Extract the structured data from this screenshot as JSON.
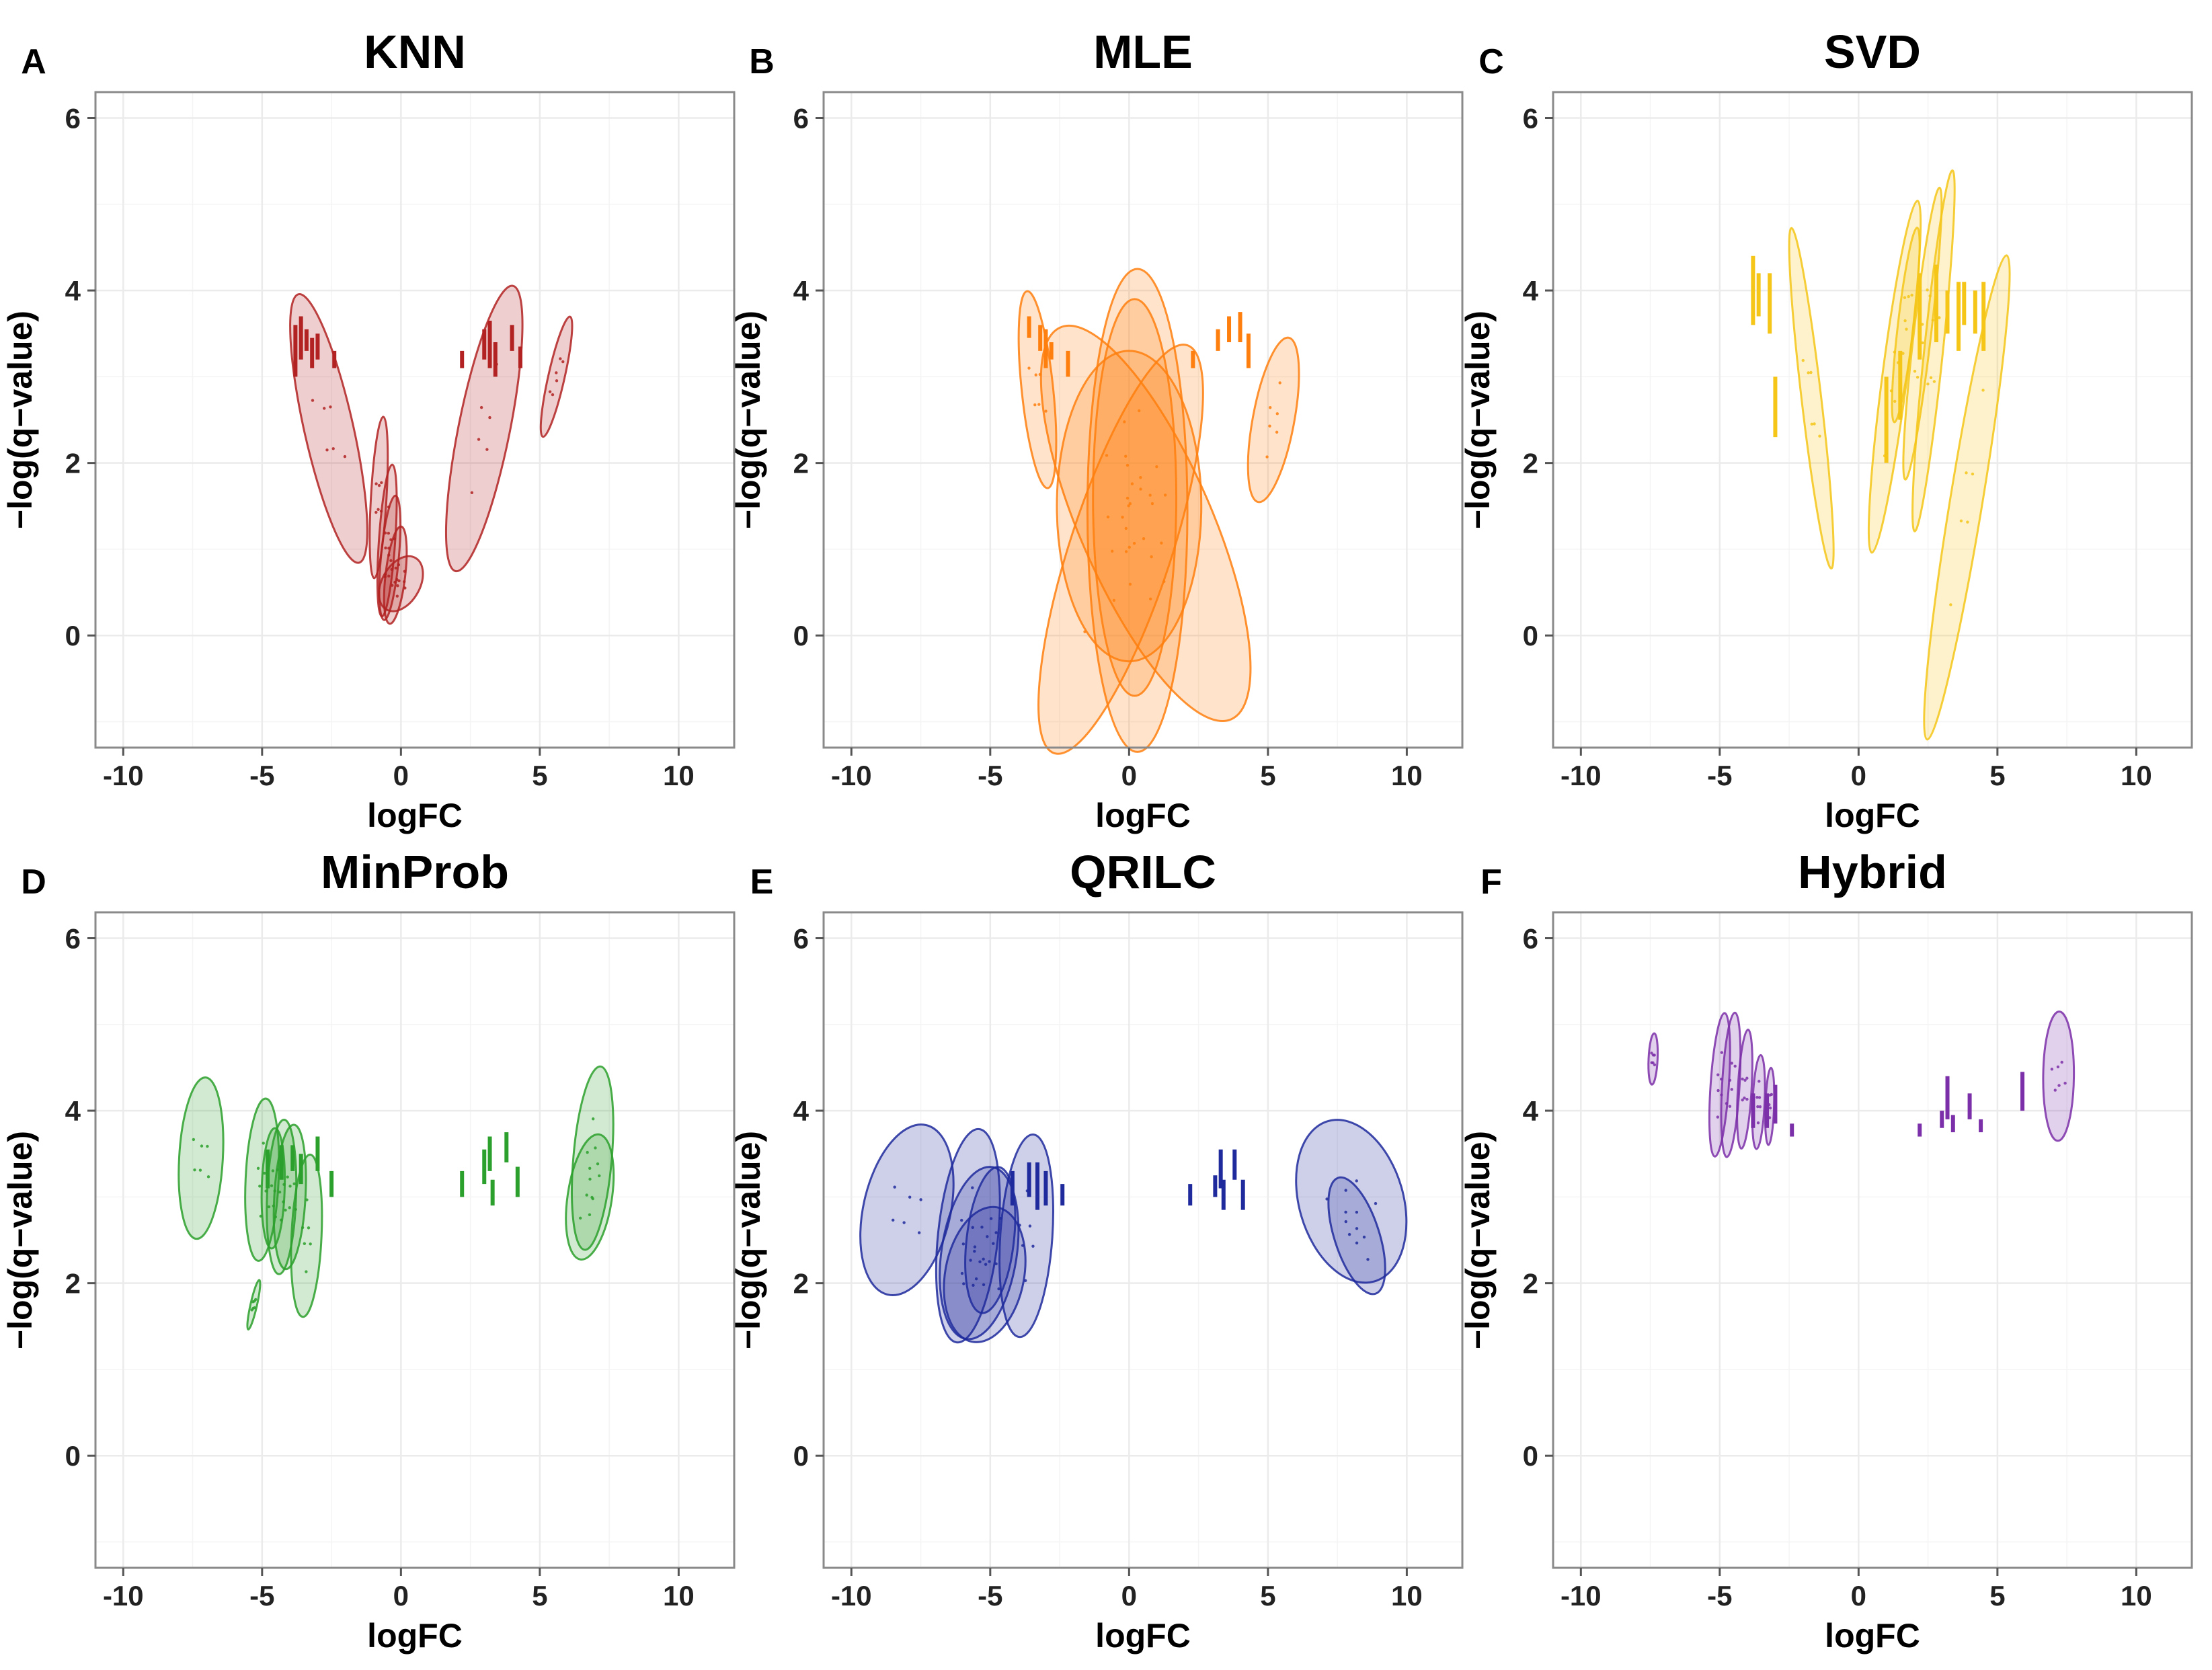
{
  "figure": {
    "x_axis_label": "logFC",
    "y_axis_label": "−log(q−value)"
  },
  "chart_data": [
    {
      "panel": "A",
      "title": "KNN",
      "type": "scatter",
      "color": "#b22222",
      "xlabel": "logFC",
      "ylabel": "−log(q−value)",
      "xlim": [
        -11,
        12
      ],
      "ylim": [
        -1.3,
        6.3
      ],
      "xticks": [
        -10,
        -5,
        0,
        5,
        10
      ],
      "yticks": [
        0,
        2,
        4,
        6
      ],
      "ellipses": [
        {
          "cx": -2.6,
          "cy": 2.4,
          "rx": 1.9,
          "ry": 0.45,
          "angle": -55
        },
        {
          "cx": 3.0,
          "cy": 2.4,
          "rx": 1.95,
          "ry": 0.5,
          "angle": 58
        },
        {
          "cx": 5.6,
          "cy": 3.0,
          "rx": 0.85,
          "ry": 0.15,
          "angle": 55
        },
        {
          "cx": -0.8,
          "cy": 1.6,
          "rx": 0.95,
          "ry": 0.25,
          "angle": 80
        },
        {
          "cx": -0.5,
          "cy": 1.1,
          "rx": 0.9,
          "ry": 0.25,
          "angle": 78
        },
        {
          "cx": -0.4,
          "cy": 0.9,
          "rx": 0.75,
          "ry": 0.25,
          "angle": 74
        },
        {
          "cx": -0.2,
          "cy": 0.7,
          "rx": 0.6,
          "ry": 0.25,
          "angle": 70
        },
        {
          "cx": 0.0,
          "cy": 0.6,
          "rx": 0.6,
          "ry": 0.25,
          "angle": 30
        }
      ],
      "segments": [
        {
          "x": -3.8,
          "y1": 3.0,
          "y2": 3.6
        },
        {
          "x": -3.6,
          "y1": 3.2,
          "y2": 3.7
        },
        {
          "x": -3.4,
          "y1": 3.3,
          "y2": 3.55
        },
        {
          "x": -3.2,
          "y1": 3.1,
          "y2": 3.45
        },
        {
          "x": -3.0,
          "y1": 3.2,
          "y2": 3.5
        },
        {
          "x": -2.4,
          "y1": 3.1,
          "y2": 3.3
        },
        {
          "x": 2.2,
          "y1": 3.1,
          "y2": 3.3
        },
        {
          "x": 3.0,
          "y1": 3.2,
          "y2": 3.55
        },
        {
          "x": 3.2,
          "y1": 3.1,
          "y2": 3.65
        },
        {
          "x": 3.4,
          "y1": 3.0,
          "y2": 3.4
        },
        {
          "x": 4.0,
          "y1": 3.3,
          "y2": 3.6
        },
        {
          "x": 4.3,
          "y1": 3.1,
          "y2": 3.35
        }
      ]
    },
    {
      "panel": "B",
      "title": "MLE",
      "type": "scatter",
      "color": "#ff7f0e",
      "xlabel": "logFC",
      "ylabel": "−log(q−value)",
      "xlim": [
        -11,
        12
      ],
      "ylim": [
        -1.3,
        6.3
      ],
      "xticks": [
        -10,
        -5,
        0,
        5,
        10
      ],
      "yticks": [
        0,
        2,
        4,
        6
      ],
      "ellipses": [
        {
          "cx": -3.3,
          "cy": 2.85,
          "rx": 1.2,
          "ry": 0.42,
          "angle": -72
        },
        {
          "cx": 5.2,
          "cy": 2.5,
          "rx": 1.1,
          "ry": 0.42,
          "angle": 60
        },
        {
          "cx": 0.3,
          "cy": 1.45,
          "rx": 1.8,
          "ry": 2.8,
          "angle": 0
        },
        {
          "cx": -0.3,
          "cy": 1.0,
          "rx": 1.75,
          "ry": 2.5,
          "angle": -6
        },
        {
          "cx": 0.6,
          "cy": 1.3,
          "rx": 2.2,
          "ry": 2.5,
          "angle": 8
        },
        {
          "cx": 0.0,
          "cy": 1.5,
          "rx": 2.6,
          "ry": 1.8,
          "angle": 0
        },
        {
          "cx": 0.2,
          "cy": 1.6,
          "rx": 1.5,
          "ry": 2.3,
          "angle": 0
        }
      ],
      "segments": [
        {
          "x": -3.6,
          "y1": 3.45,
          "y2": 3.7
        },
        {
          "x": -3.2,
          "y1": 3.3,
          "y2": 3.6
        },
        {
          "x": -3.0,
          "y1": 3.1,
          "y2": 3.55
        },
        {
          "x": -2.8,
          "y1": 3.2,
          "y2": 3.4
        },
        {
          "x": -2.2,
          "y1": 3.0,
          "y2": 3.3
        },
        {
          "x": 2.3,
          "y1": 3.1,
          "y2": 3.3
        },
        {
          "x": 3.2,
          "y1": 3.3,
          "y2": 3.55
        },
        {
          "x": 3.6,
          "y1": 3.4,
          "y2": 3.7
        },
        {
          "x": 4.0,
          "y1": 3.4,
          "y2": 3.75
        },
        {
          "x": 4.3,
          "y1": 3.1,
          "y2": 3.5
        }
      ]
    },
    {
      "panel": "C",
      "title": "SVD",
      "type": "scatter",
      "color": "#f5c518",
      "xlabel": "logFC",
      "ylabel": "−log(q−value)",
      "xlim": [
        -11,
        12
      ],
      "ylim": [
        -1.3,
        6.3
      ],
      "xticks": [
        -10,
        -5,
        0,
        5,
        10
      ],
      "yticks": [
        0,
        2,
        4,
        6
      ],
      "ellipses": [
        {
          "cx": -1.7,
          "cy": 2.75,
          "rx": 2.1,
          "ry": 0.25,
          "angle": -70
        },
        {
          "cx": 1.3,
          "cy": 3.0,
          "rx": 2.2,
          "ry": 0.3,
          "angle": 68
        },
        {
          "cx": 2.3,
          "cy": 3.5,
          "rx": 1.8,
          "ry": 0.22,
          "angle": 70
        },
        {
          "cx": 2.7,
          "cy": 3.3,
          "rx": 2.2,
          "ry": 0.25,
          "angle": 72
        },
        {
          "cx": 3.9,
          "cy": 1.6,
          "rx": 3.15,
          "ry": 0.35,
          "angle": 63
        },
        {
          "cx": 1.7,
          "cy": 3.6,
          "rx": 1.2,
          "ry": 0.2,
          "angle": 70
        }
      ],
      "segments": [
        {
          "x": -3.8,
          "y1": 3.6,
          "y2": 4.4
        },
        {
          "x": -3.6,
          "y1": 3.7,
          "y2": 4.2
        },
        {
          "x": -3.2,
          "y1": 3.5,
          "y2": 4.2
        },
        {
          "x": -3.0,
          "y1": 2.3,
          "y2": 3.0
        },
        {
          "x": 1.0,
          "y1": 2.0,
          "y2": 3.0
        },
        {
          "x": 1.5,
          "y1": 2.5,
          "y2": 3.3
        },
        {
          "x": 2.2,
          "y1": 3.2,
          "y2": 4.2
        },
        {
          "x": 2.8,
          "y1": 3.4,
          "y2": 4.3
        },
        {
          "x": 3.2,
          "y1": 3.5,
          "y2": 4.0
        },
        {
          "x": 3.6,
          "y1": 3.3,
          "y2": 4.1
        },
        {
          "x": 3.8,
          "y1": 3.6,
          "y2": 4.1
        },
        {
          "x": 4.2,
          "y1": 3.5,
          "y2": 4.0
        },
        {
          "x": 4.5,
          "y1": 3.3,
          "y2": 4.1
        }
      ]
    },
    {
      "panel": "D",
      "title": "MinProb",
      "type": "scatter",
      "color": "#2ca02c",
      "xlabel": "logFC",
      "ylabel": "−log(q−value)",
      "xlim": [
        -11,
        12
      ],
      "ylim": [
        -1.3,
        6.3
      ],
      "xticks": [
        -10,
        -5,
        0,
        5,
        10
      ],
      "yticks": [
        0,
        2,
        4,
        6
      ],
      "ellipses": [
        {
          "cx": -7.2,
          "cy": 3.45,
          "rx": 0.95,
          "ry": 0.7,
          "angle": 80
        },
        {
          "cx": -5.0,
          "cy": 3.2,
          "rx": 0.95,
          "ry": 0.55,
          "angle": 82
        },
        {
          "cx": -4.3,
          "cy": 3.0,
          "rx": 0.9,
          "ry": 0.5,
          "angle": 84
        },
        {
          "cx": -4.0,
          "cy": 3.0,
          "rx": 0.85,
          "ry": 0.5,
          "angle": 80
        },
        {
          "cx": -3.4,
          "cy": 2.55,
          "rx": 0.95,
          "ry": 0.5,
          "angle": 82
        },
        {
          "cx": -4.6,
          "cy": 3.1,
          "rx": 0.7,
          "ry": 0.4,
          "angle": 85
        },
        {
          "cx": -5.3,
          "cy": 1.75,
          "rx": 0.35,
          "ry": 0.06,
          "angle": 55
        },
        {
          "cx": 6.9,
          "cy": 3.45,
          "rx": 1.1,
          "ry": 0.55,
          "angle": 75
        },
        {
          "cx": 6.8,
          "cy": 3.0,
          "rx": 0.8,
          "ry": 0.5,
          "angle": 65
        }
      ],
      "segments": [
        {
          "x": -4.8,
          "y1": 3.1,
          "y2": 3.55
        },
        {
          "x": -4.3,
          "y1": 3.2,
          "y2": 3.6
        },
        {
          "x": -3.9,
          "y1": 3.3,
          "y2": 3.6
        },
        {
          "x": -3.6,
          "y1": 3.15,
          "y2": 3.5
        },
        {
          "x": -3.0,
          "y1": 3.3,
          "y2": 3.7
        },
        {
          "x": -2.5,
          "y1": 3.0,
          "y2": 3.3
        },
        {
          "x": 2.2,
          "y1": 3.0,
          "y2": 3.3
        },
        {
          "x": 3.0,
          "y1": 3.15,
          "y2": 3.55
        },
        {
          "x": 3.2,
          "y1": 3.3,
          "y2": 3.7
        },
        {
          "x": 3.3,
          "y1": 2.9,
          "y2": 3.2
        },
        {
          "x": 3.8,
          "y1": 3.4,
          "y2": 3.75
        },
        {
          "x": 4.2,
          "y1": 3.0,
          "y2": 3.35
        }
      ]
    },
    {
      "panel": "E",
      "title": "QRILC",
      "type": "scatter",
      "color": "#1f2a9c",
      "xlabel": "logFC",
      "ylabel": "−log(q−value)",
      "xlim": [
        -11,
        12
      ],
      "ylim": [
        -1.3,
        6.3
      ],
      "xticks": [
        -10,
        -5,
        0,
        5,
        10
      ],
      "yticks": [
        0,
        2,
        4,
        6
      ],
      "ellipses": [
        {
          "cx": -8.0,
          "cy": 2.85,
          "rx": 1.2,
          "ry": 0.8,
          "angle": 55
        },
        {
          "cx": -5.8,
          "cy": 2.55,
          "rx": 1.3,
          "ry": 0.8,
          "angle": 72
        },
        {
          "cx": -5.4,
          "cy": 2.35,
          "rx": 1.1,
          "ry": 0.85,
          "angle": 65
        },
        {
          "cx": -5.2,
          "cy": 2.1,
          "rx": 0.9,
          "ry": 0.8,
          "angle": 60
        },
        {
          "cx": -3.7,
          "cy": 2.55,
          "rx": 1.2,
          "ry": 0.8,
          "angle": 78
        },
        {
          "cx": -5.0,
          "cy": 2.5,
          "rx": 0.9,
          "ry": 0.6,
          "angle": 70
        },
        {
          "cx": 8.0,
          "cy": 2.95,
          "rx": 1.25,
          "ry": 0.85,
          "angle": -48
        },
        {
          "cx": 8.2,
          "cy": 2.55,
          "rx": 0.95,
          "ry": 0.35,
          "angle": -45
        }
      ],
      "segments": [
        {
          "x": -4.2,
          "y1": 2.9,
          "y2": 3.3
        },
        {
          "x": -3.6,
          "y1": 3.0,
          "y2": 3.4
        },
        {
          "x": -3.3,
          "y1": 2.85,
          "y2": 3.4
        },
        {
          "x": -3.0,
          "y1": 2.9,
          "y2": 3.3
        },
        {
          "x": -2.4,
          "y1": 2.9,
          "y2": 3.15
        },
        {
          "x": 2.2,
          "y1": 2.9,
          "y2": 3.15
        },
        {
          "x": 3.1,
          "y1": 3.0,
          "y2": 3.25
        },
        {
          "x": 3.3,
          "y1": 3.1,
          "y2": 3.55
        },
        {
          "x": 3.4,
          "y1": 2.85,
          "y2": 3.2
        },
        {
          "x": 3.8,
          "y1": 3.2,
          "y2": 3.55
        },
        {
          "x": 4.1,
          "y1": 2.85,
          "y2": 3.2
        }
      ]
    },
    {
      "panel": "F",
      "title": "Hybrid",
      "type": "scatter",
      "color": "#7b2fa8",
      "xlabel": "logFC",
      "ylabel": "−log(q−value)",
      "xlim": [
        -11,
        12
      ],
      "ylim": [
        -1.3,
        6.3
      ],
      "xticks": [
        -10,
        -5,
        0,
        5,
        10
      ],
      "yticks": [
        0,
        2,
        4,
        6
      ],
      "ellipses": [
        {
          "cx": -7.4,
          "cy": 4.6,
          "rx": 0.3,
          "ry": 0.15,
          "angle": 82
        },
        {
          "cx": -5.0,
          "cy": 4.3,
          "rx": 0.85,
          "ry": 0.28,
          "angle": 78
        },
        {
          "cx": -4.6,
          "cy": 4.3,
          "rx": 0.85,
          "ry": 0.28,
          "angle": 80
        },
        {
          "cx": -4.1,
          "cy": 4.25,
          "rx": 0.7,
          "ry": 0.22,
          "angle": 80
        },
        {
          "cx": -3.6,
          "cy": 4.1,
          "rx": 0.55,
          "ry": 0.2,
          "angle": 82
        },
        {
          "cx": -3.2,
          "cy": 4.05,
          "rx": 0.45,
          "ry": 0.15,
          "angle": 84
        },
        {
          "cx": 7.2,
          "cy": 4.4,
          "rx": 0.75,
          "ry": 0.55,
          "angle": 88
        }
      ],
      "segments": [
        {
          "x": -3.8,
          "y1": 3.8,
          "y2": 4.2
        },
        {
          "x": -3.3,
          "y1": 3.8,
          "y2": 4.2
        },
        {
          "x": -3.0,
          "y1": 3.85,
          "y2": 4.3
        },
        {
          "x": -2.4,
          "y1": 3.7,
          "y2": 3.85
        },
        {
          "x": 2.2,
          "y1": 3.7,
          "y2": 3.85
        },
        {
          "x": 3.0,
          "y1": 3.8,
          "y2": 4.0
        },
        {
          "x": 3.2,
          "y1": 3.9,
          "y2": 4.4
        },
        {
          "x": 3.4,
          "y1": 3.75,
          "y2": 3.95
        },
        {
          "x": 4.0,
          "y1": 3.9,
          "y2": 4.2
        },
        {
          "x": 4.4,
          "y1": 3.75,
          "y2": 3.9
        },
        {
          "x": 5.9,
          "y1": 4.0,
          "y2": 4.45
        }
      ]
    }
  ]
}
